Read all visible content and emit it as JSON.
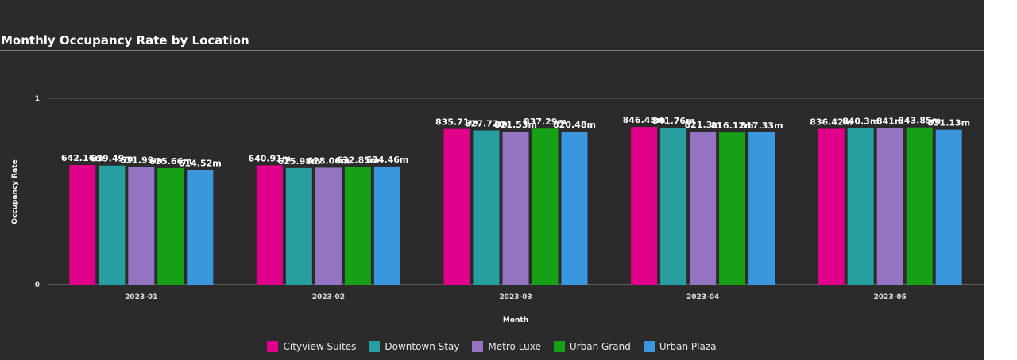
{
  "title": "Monthly Occupancy Rate by Location",
  "chart_data": {
    "type": "bar",
    "title": "Monthly Occupancy Rate by Location",
    "xlabel": "Month",
    "ylabel": "Occupancy Rate",
    "ylim": [
      0,
      1
    ],
    "yticks": [
      "0",
      "1"
    ],
    "grid": true,
    "legend_position": "bottom",
    "categories": [
      "2023-01",
      "2023-02",
      "2023-03",
      "2023-04",
      "2023-05"
    ],
    "series": [
      {
        "name": "Cityview Suites",
        "color": "#e0008a",
        "values": [
          0.64216,
          0.64091,
          0.83571,
          0.84645,
          0.83642
        ],
        "labels": [
          "642.16m",
          "640.91m",
          "835.71m",
          "846.45m",
          "836.42m"
        ]
      },
      {
        "name": "Downtown Stay",
        "color": "#279e9f",
        "values": [
          0.63949,
          0.62598,
          0.82772,
          0.84176,
          0.8403
        ],
        "labels": [
          "639.49m",
          "625.98m",
          "827.72m",
          "841.76m",
          "840.3m"
        ]
      },
      {
        "name": "Metro Luxe",
        "color": "#9474c1",
        "values": [
          0.63199,
          0.62806,
          0.82153,
          0.8213,
          0.841
        ],
        "labels": [
          "631.99m",
          "628.06m",
          "821.53m",
          "821.3m",
          "841m"
        ]
      },
      {
        "name": "Urban Grand",
        "color": "#15a015",
        "values": [
          0.62566,
          0.63285,
          0.83729,
          0.81612,
          0.84385
        ],
        "labels": [
          "625.66m",
          "632.85m",
          "837.29m",
          "816.12m",
          "843.85m"
        ]
      },
      {
        "name": "Urban Plaza",
        "color": "#3a96dd",
        "values": [
          0.61452,
          0.63446,
          0.82048,
          0.81733,
          0.83113
        ],
        "labels": [
          "614.52m",
          "634.46m",
          "820.48m",
          "817.33m",
          "831.13m"
        ]
      }
    ]
  }
}
